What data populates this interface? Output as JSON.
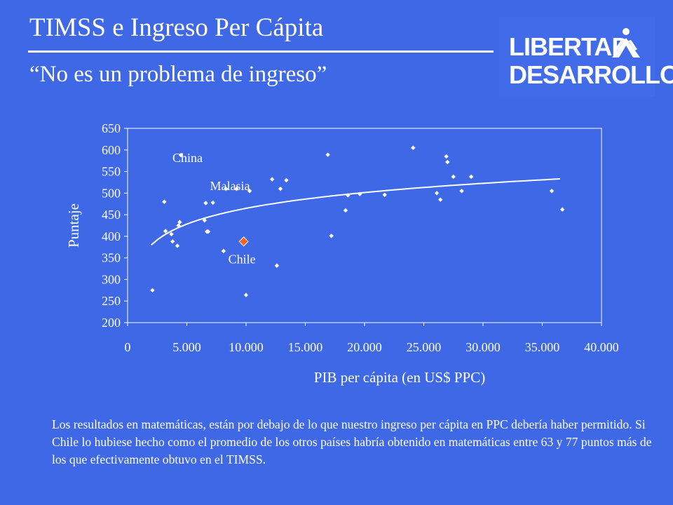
{
  "header": {
    "title": "TIMSS e Ingreso Per Cápita",
    "subtitle": "“No es un problema  de ingreso”"
  },
  "logo": {
    "line1": "LIBERTAD",
    "line2": "DESARROLLO"
  },
  "colors": {
    "background": "#3E68E6",
    "foreground": "#FFFFFF",
    "highlight": "#F26522"
  },
  "chart_data": {
    "type": "scatter",
    "xlabel": "PIB per cápita (en US$ PPC)",
    "ylabel": "Puntaje",
    "xlim": [
      0,
      40000
    ],
    "ylim": [
      200,
      650
    ],
    "xticks": [
      0,
      5000,
      10000,
      15000,
      20000,
      25000,
      30000,
      35000,
      40000
    ],
    "xtick_labels": [
      "0",
      "5.000",
      "10.000",
      "15.000",
      "20.000",
      "25.000",
      "30.000",
      "35.000",
      "40.000"
    ],
    "yticks": [
      200,
      250,
      300,
      350,
      400,
      450,
      500,
      550,
      600,
      650
    ],
    "ytick_labels": [
      "200",
      "250",
      "300",
      "350",
      "400",
      "450",
      "500",
      "550",
      "600",
      "650"
    ],
    "grid": false,
    "points": [
      {
        "x": 2100,
        "y": 275
      },
      {
        "x": 3100,
        "y": 480
      },
      {
        "x": 3200,
        "y": 412
      },
      {
        "x": 3700,
        "y": 405
      },
      {
        "x": 3800,
        "y": 388
      },
      {
        "x": 4200,
        "y": 378
      },
      {
        "x": 4300,
        "y": 425
      },
      {
        "x": 4400,
        "y": 433
      },
      {
        "x": 4500,
        "y": 588
      },
      {
        "x": 6500,
        "y": 437
      },
      {
        "x": 6600,
        "y": 477
      },
      {
        "x": 6700,
        "y": 411
      },
      {
        "x": 6800,
        "y": 411
      },
      {
        "x": 7200,
        "y": 478
      },
      {
        "x": 8100,
        "y": 366
      },
      {
        "x": 8300,
        "y": 510
      },
      {
        "x": 9200,
        "y": 510
      },
      {
        "x": 10000,
        "y": 264
      },
      {
        "x": 10300,
        "y": 505
      },
      {
        "x": 12200,
        "y": 532
      },
      {
        "x": 12600,
        "y": 332
      },
      {
        "x": 12900,
        "y": 510
      },
      {
        "x": 13400,
        "y": 530
      },
      {
        "x": 16900,
        "y": 589
      },
      {
        "x": 17200,
        "y": 401
      },
      {
        "x": 18400,
        "y": 460
      },
      {
        "x": 18600,
        "y": 495
      },
      {
        "x": 19600,
        "y": 498
      },
      {
        "x": 21700,
        "y": 496
      },
      {
        "x": 24100,
        "y": 605
      },
      {
        "x": 26100,
        "y": 500
      },
      {
        "x": 26400,
        "y": 485
      },
      {
        "x": 26900,
        "y": 585
      },
      {
        "x": 27000,
        "y": 572
      },
      {
        "x": 27500,
        "y": 538
      },
      {
        "x": 28200,
        "y": 505
      },
      {
        "x": 29000,
        "y": 538
      },
      {
        "x": 35800,
        "y": 505
      },
      {
        "x": 36700,
        "y": 462
      }
    ],
    "highlight": {
      "label": "Chile",
      "x": 9800,
      "y": 388
    },
    "annotations": [
      {
        "text": "China",
        "x": 4500,
        "y": 588
      },
      {
        "text": "Malasia",
        "x": 9200,
        "y": 510
      },
      {
        "text": "Chile",
        "x": 9800,
        "y": 388
      }
    ],
    "trendline": {
      "type": "logarithmic",
      "x_from": 2000,
      "x_to": 36500,
      "y_from": 380,
      "y_to": 533
    }
  },
  "caption": "Los resultados en matemáticas, están  por debajo de lo que nuestro ingreso per cápita en PPC debería haber permitido. Si Chile lo hubiese hecho como el promedio de los otros países habría obtenido en matemáticas entre 63 y 77 puntos más de los que efectivamente obtuvo en el TIMSS."
}
